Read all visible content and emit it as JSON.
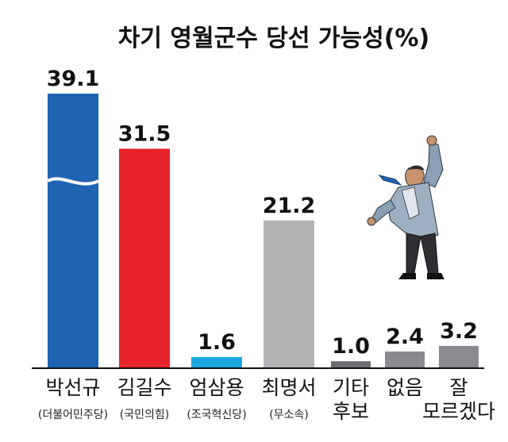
{
  "chart_data": {
    "type": "bar",
    "title": "차기 영월군수 당선 가능성(%)",
    "categories": [
      {
        "name": "박선규",
        "sub": "(더불어민주당)"
      },
      {
        "name": "김길수",
        "sub": "(국민의힘)"
      },
      {
        "name": "엄삼용",
        "sub": "(조국혁신당)"
      },
      {
        "name": "최명서",
        "sub": "(무소속)"
      },
      {
        "name": "기타 후보",
        "lines": [
          "기타",
          "후보"
        ],
        "sub": ""
      },
      {
        "name": "없음",
        "sub": ""
      },
      {
        "name": "잘 모르겠다",
        "lines": [
          "잘",
          "모르겠다"
        ],
        "sub": ""
      }
    ],
    "values": [
      39.1,
      31.5,
      1.6,
      21.2,
      1.0,
      2.4,
      3.2
    ],
    "value_labels": [
      "39.1",
      "31.5",
      "1.6",
      "21.2",
      "1.0",
      "2.4",
      "3.2"
    ],
    "colors": [
      "#1f63b3",
      "#e8232a",
      "#1aa7e0",
      "#b3b4b6",
      "#6d6e71",
      "#8a8b8e",
      "#8a8b8e"
    ],
    "axis_break_on_first_bar": true,
    "grid": false,
    "legend": "none"
  }
}
